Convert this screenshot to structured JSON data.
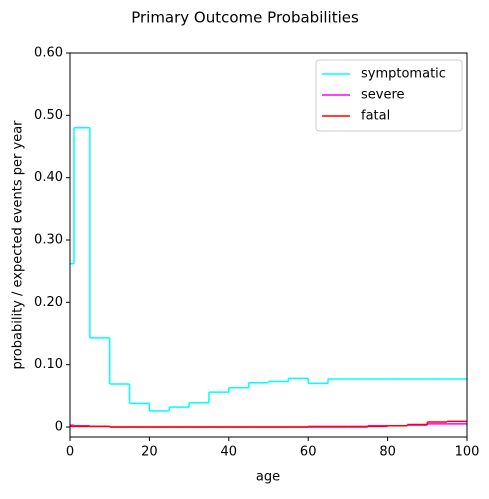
{
  "chart_data": {
    "type": "step",
    "title": "Primary Outcome Probabilities",
    "xlabel": "age",
    "ylabel": "probability / expected events per year",
    "x": [
      0,
      1,
      5,
      10,
      15,
      20,
      25,
      30,
      35,
      40,
      45,
      50,
      55,
      60,
      65,
      70,
      75,
      80,
      85,
      90,
      95,
      100
    ],
    "series": [
      {
        "name": "symptomatic",
        "color": "#00ffff",
        "values": [
          0.262,
          0.48,
          0.143,
          0.069,
          0.038,
          0.026,
          0.032,
          0.039,
          0.056,
          0.063,
          0.071,
          0.073,
          0.078,
          0.07,
          0.077,
          0.077,
          0.077,
          0.077,
          0.077,
          0.077,
          0.077,
          0.077
        ]
      },
      {
        "name": "severe",
        "color": "#ff00ff",
        "values": [
          0.003,
          0.002,
          0.001,
          0,
          0,
          0,
          0,
          0,
          0,
          0,
          0,
          0,
          0,
          0.001,
          0.001,
          0.001,
          0.002,
          0.002,
          0.003,
          0.005,
          0.005,
          0.005
        ]
      },
      {
        "name": "fatal",
        "color": "#ff0000",
        "values": [
          0.001,
          0.001,
          0.001,
          0,
          0,
          0,
          0,
          0,
          0,
          0,
          0,
          0,
          0,
          0,
          0,
          0,
          0.001,
          0.002,
          0.004,
          0.008,
          0.009,
          0.009
        ]
      }
    ],
    "xlim": [
      0,
      100
    ],
    "xticks": [
      0,
      20,
      40,
      60,
      80,
      100
    ],
    "ylim": [
      -0.016,
      0.6
    ],
    "yticks": [
      0,
      {
        "value": 0.1,
        "label": "0.10"
      },
      {
        "value": 0.2,
        "label": "0.20"
      },
      {
        "value": 0.3,
        "label": "0.30"
      },
      {
        "value": 0.4,
        "label": "0.40"
      },
      {
        "value": 0.5,
        "label": "0.50"
      },
      {
        "value": 0.6,
        "label": "0.60"
      }
    ],
    "legend": "upper right"
  }
}
